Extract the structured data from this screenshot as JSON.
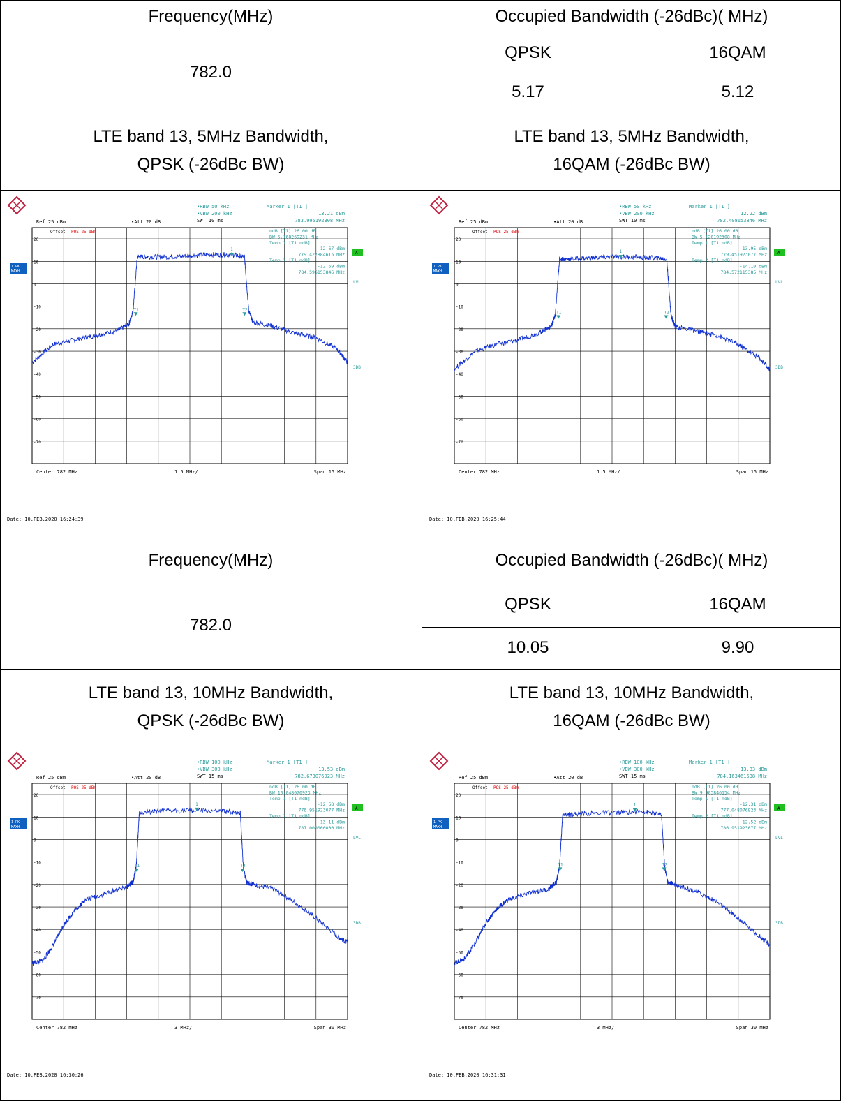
{
  "sections": [
    {
      "header_left": "Frequency(MHz)",
      "header_right": "Occupied Bandwidth (-26dBc)( MHz)",
      "frequency": "782.0",
      "mod1": "QPSK",
      "mod2": "16QAM",
      "val1": "5.17",
      "val2": "5.12",
      "title_left": [
        "LTE band 13, 5MHz Bandwidth,",
        "QPSK (-26dBc BW)"
      ],
      "title_right": [
        "LTE band 13, 5MHz Bandwidth,",
        "16QAM (-26dBc BW)"
      ]
    },
    {
      "header_left": "Frequency(MHz)",
      "header_right": "Occupied Bandwidth (-26dBc)( MHz)",
      "frequency": "782.0",
      "mod1": "QPSK",
      "mod2": "16QAM",
      "val1": "10.05",
      "val2": "9.90",
      "title_left": [
        "LTE band 13, 10MHz Bandwidth,",
        "QPSK (-26dBc BW)"
      ],
      "title_right": [
        "LTE band 13, 10MHz Bandwidth,",
        "16QAM (-26dBc BW)"
      ]
    }
  ],
  "chart_data": [
    {
      "type": "line",
      "rbw": "RBW 50 kHz",
      "vbw": "VBW 200 kHz",
      "swt": "SWT 10 ms",
      "ref": "Ref  25 dBm",
      "att": "Att  20 dB",
      "offset": "Offset",
      "marker_label": "Marker 1 [T1 ]",
      "marker_lines": [
        "13.21 dBm",
        "783.995192308 MHz",
        "ndB [T1]   26.00 dB",
        "BW   5.168269231 MHz",
        "Temp 1 [T1 ndB]",
        "-12.67 dBm",
        "779.427884615 MHz",
        "Temp 2 [T1 ndB]",
        "-12.69 dBm",
        "784.596153846 MHz"
      ],
      "center": "Center  782 MHz",
      "div": "1.5 MHz/",
      "span": "Span  15 MHz",
      "date": "Date: 10.FEB.2020  16:24:39",
      "yticks": [
        "20",
        "10",
        "0",
        "-10",
        "-20",
        "-30",
        "-40",
        "-50",
        "-60",
        "-70"
      ],
      "ylim": [
        -80,
        25
      ],
      "xlim": [
        774.5,
        789.5
      ],
      "spectrum_x": [
        774.5,
        775.5,
        776.5,
        777.5,
        778.5,
        779.1,
        779.3,
        779.5,
        780,
        781,
        782,
        783,
        784,
        784.6,
        784.8,
        785,
        786,
        787,
        788,
        789,
        789.5
      ],
      "spectrum_y": [
        -35,
        -27,
        -25,
        -23,
        -21,
        -18,
        -12,
        12,
        12,
        12,
        12.5,
        13,
        13,
        12,
        -12,
        -17,
        -19,
        -22,
        -24,
        -29,
        -35
      ],
      "marker_x": 783.995,
      "marker_y": 13.21,
      "t1_x": 779.43,
      "t2_x": 784.6,
      "t_y": -12.68
    },
    {
      "type": "line",
      "rbw": "RBW 50 kHz",
      "vbw": "VBW 200 kHz",
      "swt": "SWT 10 ms",
      "ref": "Ref  25 dBm",
      "att": "Att  20 dB",
      "offset": "Offset",
      "marker_label": "Marker 1 [T1 ]",
      "marker_lines": [
        "12.22 dBm",
        "782.408653846 MHz",
        "ndB [T1]   26.00 dB",
        "BW   5.120192308 MHz",
        "Temp 1 [T1 ndB]",
        "-13.95 dBm",
        "779.451923077 MHz",
        "Temp 2 [T1 ndB]",
        "-14.10 dBm",
        "784.572115385 MHz"
      ],
      "center": "Center  782 MHz",
      "div": "1.5 MHz/",
      "span": "Span  15 MHz",
      "date": "Date: 10.FEB.2020  16:25:44",
      "yticks": [
        "20",
        "10",
        "0",
        "-10",
        "-20",
        "-30",
        "-40",
        "-50",
        "-60",
        "-70"
      ],
      "ylim": [
        -80,
        25
      ],
      "xlim": [
        774.5,
        789.5
      ],
      "spectrum_x": [
        774.5,
        775.5,
        776.5,
        777.5,
        778.5,
        779.1,
        779.3,
        779.5,
        780,
        781,
        782,
        783,
        784,
        784.6,
        784.8,
        785,
        786,
        787,
        788,
        789,
        789.5
      ],
      "spectrum_y": [
        -38,
        -30,
        -27,
        -25,
        -22,
        -19,
        -14,
        11,
        11,
        11.5,
        12,
        12,
        11.5,
        11,
        -14,
        -19,
        -21,
        -23,
        -27,
        -33,
        -38
      ],
      "marker_x": 782.409,
      "marker_y": 12.22,
      "t1_x": 779.45,
      "t2_x": 784.57,
      "t_y": -14.0
    },
    {
      "type": "line",
      "rbw": "RBW 100 kHz",
      "vbw": "VBW 300 kHz",
      "swt": "SWT 15 ms",
      "ref": "Ref  25 dBm",
      "att": "Att  20 dB",
      "offset": "Offset",
      "marker_label": "Marker 1 [T1 ]",
      "marker_lines": [
        "13.53 dBm",
        "782.673076923 MHz",
        "ndB [T1]   26.00 dB",
        "BW   10.048076923 MHz",
        "Temp 1 [T1 ndB]",
        "-12.68 dBm",
        "776.951923077 MHz",
        "Temp 2 [T1 ndB]",
        "-13.11 dBm",
        "787.000000000 MHz"
      ],
      "center": "Center  782 MHz",
      "div": "3 MHz/",
      "span": "Span  30 MHz",
      "date": "Date: 10.FEB.2020  16:30:26",
      "yticks": [
        "20",
        "10",
        "0",
        "-10",
        "-20",
        "-30",
        "-40",
        "-50",
        "-60",
        "-70"
      ],
      "ylim": [
        -80,
        25
      ],
      "xlim": [
        767,
        797
      ],
      "spectrum_x": [
        767,
        768,
        769,
        770,
        771,
        772,
        774,
        776,
        776.6,
        776.9,
        777.2,
        779,
        782,
        785,
        786.8,
        787.1,
        787.4,
        788,
        790,
        792,
        794,
        796,
        797
      ],
      "spectrum_y": [
        -55,
        -54,
        -47,
        -38,
        -32,
        -27,
        -24,
        -21,
        -19,
        -12,
        12,
        12.5,
        13,
        12.5,
        12,
        -13,
        -19,
        -20,
        -22,
        -28,
        -35,
        -43,
        -46
      ],
      "marker_x": 782.673,
      "marker_y": 13.53,
      "t1_x": 776.95,
      "t2_x": 787.0,
      "t_y": -12.9
    },
    {
      "type": "line",
      "rbw": "RBW 100 kHz",
      "vbw": "VBW 300 kHz",
      "swt": "SWT 15 ms",
      "ref": "Ref  25 dBm",
      "att": "Att  20 dB",
      "offset": "Offset",
      "marker_label": "Marker 1 [T1 ]",
      "marker_lines": [
        "13.33 dBm",
        "784.163461538 MHz",
        "ndB [T1]   26.00 dB",
        "BW   9.903846154 MHz",
        "Temp 1 [T1 ndB]",
        "-12.31 dBm",
        "777.048076923 MHz",
        "Temp 2 [T1 ndB]",
        "-12.52 dBm",
        "786.951923077 MHz"
      ],
      "center": "Center  782 MHz",
      "div": "3 MHz/",
      "span": "Span  30 MHz",
      "date": "Date: 10.FEB.2020  16:31:31",
      "yticks": [
        "20",
        "10",
        "0",
        "-10",
        "-20",
        "-30",
        "-40",
        "-50",
        "-60",
        "-70"
      ],
      "ylim": [
        -80,
        25
      ],
      "xlim": [
        767,
        797
      ],
      "spectrum_x": [
        767,
        768,
        769,
        770,
        771,
        772,
        774,
        776,
        776.7,
        777,
        777.3,
        779,
        782,
        785,
        786.7,
        787,
        787.3,
        788,
        790,
        792,
        794,
        796,
        797
      ],
      "spectrum_y": [
        -55,
        -53,
        -46,
        -37,
        -31,
        -27,
        -24,
        -22,
        -19,
        -12,
        11,
        11.5,
        12,
        12.5,
        11,
        -12,
        -19,
        -20,
        -23,
        -28,
        -35,
        -43,
        -47
      ],
      "marker_x": 784.163,
      "marker_y": 13.33,
      "t1_x": 777.05,
      "t2_x": 786.95,
      "t_y": -12.4
    }
  ]
}
